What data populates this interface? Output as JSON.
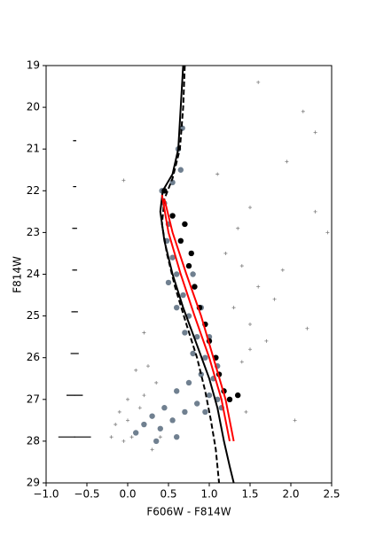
{
  "chart_data": {
    "type": "scatter",
    "xlabel": "F606W - F814W",
    "ylabel": "F814W",
    "xlim": [
      -1.0,
      2.5
    ],
    "ylim": [
      29,
      19
    ],
    "xticks": [
      {
        "value": -1.0,
        "label": "−1.0"
      },
      {
        "value": -0.5,
        "label": "−0.5"
      },
      {
        "value": 0.0,
        "label": "0.0"
      },
      {
        "value": 0.5,
        "label": "0.5"
      },
      {
        "value": 1.0,
        "label": "1.0"
      },
      {
        "value": 1.5,
        "label": "1.5"
      },
      {
        "value": 2.0,
        "label": "2.0"
      },
      {
        "value": 2.5,
        "label": "2.5"
      }
    ],
    "yticks": [
      19,
      20,
      21,
      22,
      23,
      24,
      25,
      26,
      27,
      28,
      29
    ],
    "series": [
      {
        "kind": "points",
        "marker": "+",
        "color": "#808080",
        "x": [
          1.6,
          2.15,
          2.3,
          1.95,
          -0.05,
          1.1,
          1.5,
          2.3,
          1.35,
          2.45,
          1.2,
          1.4,
          1.9,
          1.6,
          1.8,
          1.3,
          1.5,
          2.2,
          1.7,
          0.2,
          1.4,
          1.5,
          0.1,
          0.25,
          -0.1,
          0.0,
          -0.15,
          0.05,
          -0.05,
          0.3,
          0.2,
          0.35,
          0.15,
          0.0,
          -0.2,
          0.4,
          1.45,
          2.05
        ],
        "y": [
          19.4,
          20.1,
          20.6,
          21.3,
          21.75,
          21.6,
          22.4,
          22.5,
          22.9,
          23.0,
          23.5,
          23.8,
          23.9,
          24.3,
          24.6,
          24.8,
          25.2,
          25.3,
          25.6,
          25.4,
          26.1,
          25.8,
          26.3,
          26.2,
          27.3,
          27.0,
          27.6,
          27.9,
          28.0,
          28.2,
          26.9,
          26.6,
          27.2,
          27.5,
          27.9,
          27.9,
          27.3,
          27.5
        ]
      },
      {
        "kind": "points",
        "marker": "o",
        "color": "#708090",
        "x": [
          0.45,
          0.5,
          0.48,
          0.55,
          0.6,
          0.5,
          0.68,
          0.6,
          0.75,
          0.7,
          0.85,
          0.8,
          0.95,
          0.9,
          1.05,
          0.75,
          1.0,
          0.6,
          0.85,
          1.1,
          0.45,
          0.7,
          0.95,
          0.3,
          0.55,
          0.2,
          0.4,
          0.1,
          0.35,
          0.6,
          0.65,
          0.62,
          0.67,
          0.55,
          0.42,
          1.15,
          0.8,
          0.9,
          1.0,
          1.1
        ],
        "y": [
          22.3,
          22.8,
          23.2,
          23.6,
          24.0,
          24.2,
          24.5,
          24.8,
          25.0,
          25.4,
          25.5,
          25.9,
          26.0,
          26.4,
          26.5,
          26.6,
          26.9,
          26.8,
          27.1,
          27.0,
          27.2,
          27.3,
          27.3,
          27.4,
          27.5,
          27.6,
          27.7,
          27.8,
          28.0,
          27.9,
          21.5,
          21.0,
          20.5,
          21.8,
          22.0,
          27.2,
          24.0,
          24.8,
          25.5,
          26.2
        ]
      },
      {
        "kind": "points",
        "marker": "o",
        "color": "#000000",
        "x": [
          0.45,
          0.55,
          0.65,
          0.75,
          0.82,
          0.88,
          0.95,
          1.0,
          1.08,
          1.12,
          1.18,
          1.25,
          1.35,
          0.7,
          0.78
        ],
        "y": [
          22.0,
          22.6,
          23.2,
          23.8,
          24.3,
          24.8,
          25.2,
          25.6,
          26.0,
          26.4,
          26.8,
          27.0,
          26.9,
          22.8,
          23.5
        ]
      },
      {
        "kind": "line",
        "dash": false,
        "color": "#000000",
        "x": [
          0.68,
          0.65,
          0.62,
          0.55,
          0.43,
          0.4,
          0.45,
          0.55,
          0.68,
          0.85,
          1.0,
          1.1,
          1.18,
          1.25,
          1.3
        ],
        "y": [
          19,
          20,
          21,
          21.6,
          22.0,
          22.5,
          23.2,
          24,
          24.8,
          25.7,
          26.5,
          27.2,
          28,
          28.6,
          29
        ]
      },
      {
        "kind": "line",
        "dash": true,
        "color": "#000000",
        "x": [
          0.7,
          0.68,
          0.64,
          0.55,
          0.45,
          0.42,
          0.48,
          0.58,
          0.72,
          0.85,
          0.95,
          1.02,
          1.08,
          1.12
        ],
        "y": [
          19,
          20,
          21,
          21.7,
          22.2,
          22.8,
          23.5,
          24.3,
          25.2,
          26,
          26.8,
          27.5,
          28.2,
          29
        ]
      },
      {
        "kind": "line",
        "dash": false,
        "color": "#ff0000",
        "x": [
          0.42,
          0.5,
          0.65,
          0.82,
          1.0,
          1.15,
          1.25
        ],
        "y": [
          22.1,
          23,
          24,
          25,
          26,
          27,
          28
        ]
      },
      {
        "kind": "line",
        "dash": false,
        "color": "#ff0000",
        "x": [
          0.45,
          0.55,
          0.72,
          0.9,
          1.05,
          1.2,
          1.3
        ],
        "y": [
          22.2,
          23,
          24,
          25,
          26,
          27,
          28
        ]
      },
      {
        "kind": "errorbar",
        "color": "#000000",
        "x": [
          -0.65,
          -0.65,
          -0.65,
          -0.65,
          -0.65,
          -0.65,
          -0.65,
          -0.65
        ],
        "y": [
          20.8,
          21.9,
          22.9,
          23.9,
          24.9,
          25.9,
          26.9,
          27.9
        ],
        "xerr": [
          0.02,
          0.02,
          0.03,
          0.03,
          0.04,
          0.05,
          0.1,
          0.2
        ],
        "yerr": [
          0.02,
          0.02,
          0.03,
          0.04,
          0.05,
          0.07,
          0.1,
          0.18
        ]
      }
    ]
  }
}
